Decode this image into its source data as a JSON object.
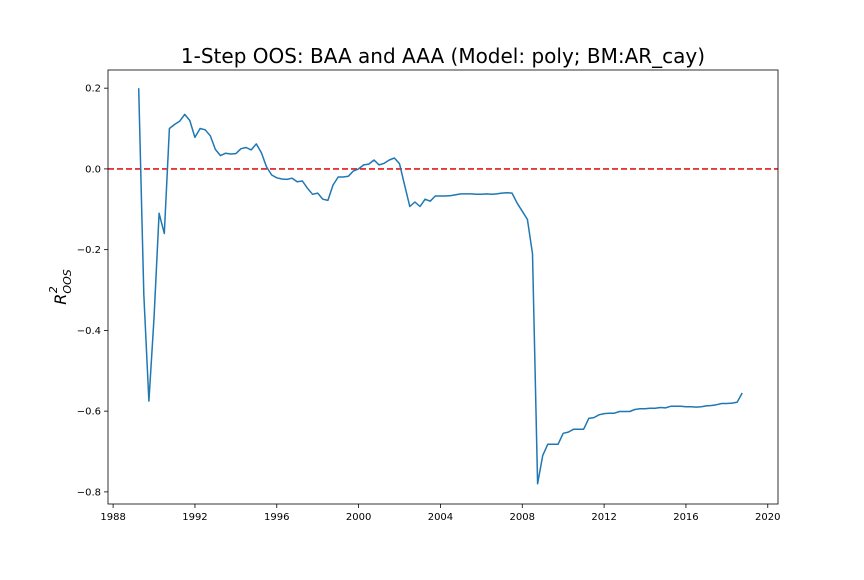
{
  "chart_data": {
    "type": "line",
    "title": "1-Step OOS: BAA and AAA (Model: poly; BM:AR_cay)",
    "xlabel": "",
    "ylabel_main": "R",
    "ylabel_sup": "2",
    "ylabel_sub": "OOS",
    "xlim": [
      1987.75,
      2020.5
    ],
    "ylim": [
      -0.83,
      0.245
    ],
    "xticks": [
      1988,
      1992,
      1996,
      2000,
      2004,
      2008,
      2012,
      2016,
      2020
    ],
    "xtick_labels": [
      "1988",
      "1992",
      "1996",
      "2000",
      "2004",
      "2008",
      "2012",
      "2016",
      "2020"
    ],
    "yticks": [
      0.2,
      0.0,
      -0.2,
      -0.4,
      -0.6,
      -0.8
    ],
    "ytick_labels": [
      "0.2",
      "0.0",
      "−0.2",
      "−0.4",
      "−0.6",
      "−0.8"
    ],
    "reference_line": {
      "y": 0.0,
      "style": "dashed",
      "color": "#e41a1c"
    },
    "line_color": "#1f77b4",
    "series": [
      {
        "x": [
          1989.25,
          1989.5,
          1989.75,
          1990.0,
          1990.25,
          1990.5,
          1990.75,
          1991.0,
          1991.25,
          1991.5,
          1991.75,
          1992.0,
          1992.25,
          1992.5,
          1992.75,
          1993.0,
          1993.25,
          1993.5,
          1993.75,
          1994.0,
          1994.25,
          1994.5,
          1994.75,
          1995.0,
          1995.25,
          1995.5,
          1995.75,
          1996.0,
          1996.25,
          1996.5,
          1996.75,
          1997.0,
          1997.25,
          1997.5,
          1997.75,
          1998.0,
          1998.25,
          1998.5,
          1998.75,
          1999.0,
          1999.25,
          1999.5,
          1999.75,
          2000.0,
          2000.25,
          2000.5,
          2000.75,
          2001.0,
          2001.25,
          2001.5,
          2001.75,
          2002.0,
          2002.25,
          2002.5,
          2002.75,
          2003.0,
          2003.25,
          2003.5,
          2003.75,
          2004.0,
          2004.25,
          2004.5,
          2004.75,
          2005.0,
          2005.25,
          2005.5,
          2005.75,
          2006.0,
          2006.25,
          2006.5,
          2006.75,
          2007.0,
          2007.25,
          2007.5,
          2007.75,
          2008.0,
          2008.25,
          2008.5,
          2008.75,
          2009.0,
          2009.25,
          2009.5,
          2009.75,
          2010.0,
          2010.25,
          2010.5,
          2010.75,
          2011.0,
          2011.25,
          2011.5,
          2011.75,
          2012.0,
          2012.25,
          2012.5,
          2012.75,
          2013.0,
          2013.25,
          2013.5,
          2013.75,
          2014.0,
          2014.25,
          2014.5,
          2014.75,
          2015.0,
          2015.25,
          2015.5,
          2015.75,
          2016.0,
          2016.25,
          2016.5,
          2016.75,
          2017.0,
          2017.25,
          2017.5,
          2017.75,
          2018.0,
          2018.25,
          2018.5,
          2018.75
        ],
        "y": [
          0.2,
          -0.31,
          -0.575,
          -0.37,
          -0.11,
          -0.16,
          0.1,
          0.11,
          0.118,
          0.135,
          0.12,
          0.078,
          0.1,
          0.097,
          0.082,
          0.048,
          0.033,
          0.039,
          0.037,
          0.038,
          0.05,
          0.053,
          0.047,
          0.062,
          0.04,
          0.005,
          -0.015,
          -0.022,
          -0.025,
          -0.026,
          -0.023,
          -0.032,
          -0.03,
          -0.048,
          -0.063,
          -0.06,
          -0.075,
          -0.078,
          -0.04,
          -0.02,
          -0.02,
          -0.018,
          -0.005,
          0.0,
          0.01,
          0.012,
          0.022,
          0.01,
          0.014,
          0.022,
          0.027,
          0.013,
          -0.04,
          -0.093,
          -0.082,
          -0.093,
          -0.075,
          -0.08,
          -0.067,
          -0.067,
          -0.067,
          -0.066,
          -0.064,
          -0.062,
          -0.062,
          -0.062,
          -0.063,
          -0.063,
          -0.062,
          -0.063,
          -0.062,
          -0.06,
          -0.059,
          -0.06,
          -0.085,
          -0.105,
          -0.125,
          -0.21,
          -0.78,
          -0.71,
          -0.682,
          -0.682,
          -0.682,
          -0.655,
          -0.652,
          -0.645,
          -0.645,
          -0.645,
          -0.618,
          -0.616,
          -0.609,
          -0.606,
          -0.605,
          -0.605,
          -0.601,
          -0.601,
          -0.601,
          -0.596,
          -0.594,
          -0.594,
          -0.593,
          -0.593,
          -0.591,
          -0.592,
          -0.588,
          -0.588,
          -0.588,
          -0.589,
          -0.589,
          -0.59,
          -0.589,
          -0.587,
          -0.586,
          -0.584,
          -0.581,
          -0.581,
          -0.58,
          -0.578,
          -0.555
        ]
      }
    ]
  }
}
